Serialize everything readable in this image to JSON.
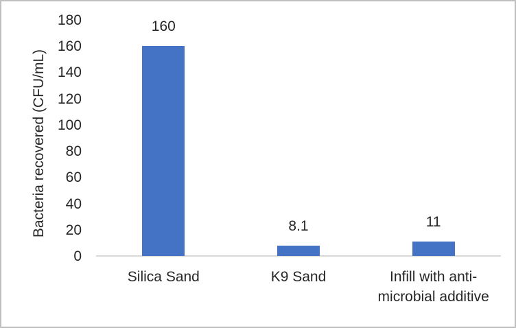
{
  "chart_data": {
    "type": "bar",
    "title": "",
    "xlabel": "",
    "ylabel": "Bacteria recovered (CFU/mL)",
    "categories": [
      "Silica Sand",
      "K9 Sand",
      "Infill with anti-microbial additive"
    ],
    "values": [
      160,
      8.1,
      11
    ],
    "data_labels": [
      "160",
      "8.1",
      "11"
    ],
    "ylim": [
      0,
      180
    ],
    "yticks": [
      0,
      20,
      40,
      60,
      80,
      100,
      120,
      140,
      160,
      180
    ],
    "grid": false,
    "legend": false,
    "bar_color": "#4472C4",
    "axis_line_color": "#D9D9D9",
    "text_color": "#262626",
    "frame_border_color": "#BFBFBF"
  }
}
